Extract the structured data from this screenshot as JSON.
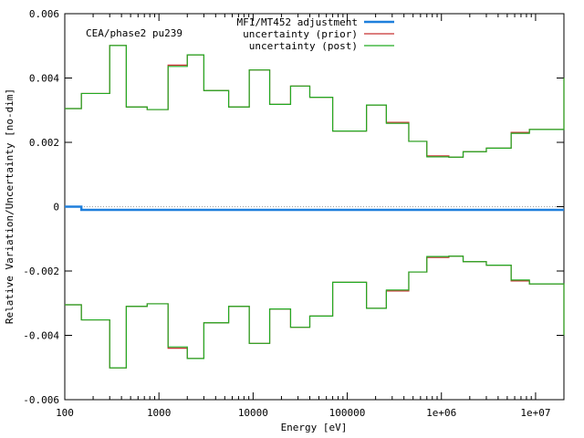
{
  "chart_data": {
    "type": "line",
    "title": "",
    "annotation": "CEA/phase2 pu239",
    "xlabel": "Energy [eV]",
    "ylabel": "Relative Variation/Uncertainty [no-dim]",
    "xscale": "log",
    "xlim": [
      100,
      20000000
    ],
    "ylim": [
      -0.006,
      0.006
    ],
    "x_ticks": [
      {
        "value": 100,
        "label": "100"
      },
      {
        "value": 1000,
        "label": "1000"
      },
      {
        "value": 10000,
        "label": "10000"
      },
      {
        "value": 100000,
        "label": "100000"
      },
      {
        "value": 1000000,
        "label": "1e+06"
      },
      {
        "value": 10000000,
        "label": "1e+07"
      }
    ],
    "y_ticks": [
      {
        "value": 0.006,
        "label": "0.006"
      },
      {
        "value": 0.004,
        "label": "0.004"
      },
      {
        "value": 0.002,
        "label": "0.002"
      },
      {
        "value": 0,
        "label": "0"
      },
      {
        "value": -0.002,
        "label": "-0.002"
      },
      {
        "value": -0.004,
        "label": "-0.004"
      },
      {
        "value": -0.006,
        "label": "-0.006"
      }
    ],
    "zero_line": true,
    "grid": false,
    "legend_position": "top-right",
    "group_edges": [
      100,
      150,
      300,
      450,
      750,
      1250,
      2000,
      3000,
      5500,
      9100,
      15000,
      25000,
      40000,
      70000,
      160000,
      260000,
      450000,
      700000,
      1200000,
      1700000,
      3000000,
      5500000,
      8600000,
      20000000
    ],
    "series": [
      {
        "name": "MF1/MT452 adjustment",
        "color": "#1e7fdc",
        "width": 2.5,
        "values": [
          0.0,
          -0.0001,
          -0.0001,
          -0.0001,
          -0.0001,
          -0.0001,
          -0.0001,
          -0.0001,
          -0.0001,
          -0.0001,
          -0.0001,
          -0.0001,
          -0.0001,
          -0.0001,
          -0.0001,
          -0.0001,
          -0.0001,
          -0.0001,
          -0.0001,
          -0.0001,
          -0.0001,
          -0.0001,
          -0.0001
        ]
      },
      {
        "name": "uncertainty (prior)",
        "color": "#c83232",
        "width": 1.2,
        "symmetric": true,
        "values": [
          0.00305,
          0.00352,
          0.00501,
          0.0031,
          0.00302,
          0.0044,
          0.00472,
          0.00361,
          0.0031,
          0.00425,
          0.00318,
          0.00375,
          0.0034,
          0.00235,
          0.00316,
          0.00262,
          0.00203,
          0.00158,
          0.00154,
          0.00171,
          0.00182,
          0.00231,
          0.0024,
          0.004
        ]
      },
      {
        "name": "uncertainty (post)",
        "color": "#22aa22",
        "width": 1.2,
        "symmetric": true,
        "values": [
          0.00305,
          0.00352,
          0.00501,
          0.0031,
          0.00302,
          0.00436,
          0.00472,
          0.00361,
          0.0031,
          0.00425,
          0.00318,
          0.00375,
          0.0034,
          0.00235,
          0.00316,
          0.00259,
          0.00203,
          0.00155,
          0.00154,
          0.00171,
          0.00182,
          0.00228,
          0.0024,
          0.004
        ]
      }
    ]
  }
}
